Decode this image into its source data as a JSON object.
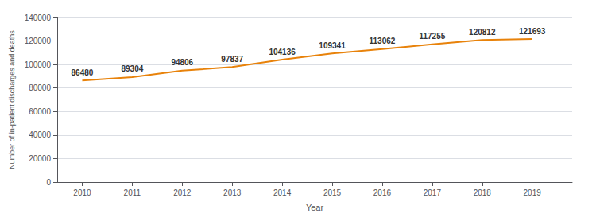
{
  "chart_data": {
    "type": "line",
    "x": [
      2010,
      2011,
      2012,
      2013,
      2014,
      2015,
      2016,
      2017,
      2018,
      2019
    ],
    "values": [
      86480,
      89304,
      94806,
      97837,
      104136,
      109341,
      113062,
      117255,
      120812,
      121693
    ],
    "color": "#E8820A",
    "xlabel": "Year",
    "ylabel": "Number of in-patient discharges and deaths",
    "xlim": [
      2009.5,
      2019.8
    ],
    "xticks": [
      2010,
      2011,
      2012,
      2013,
      2014,
      2015,
      2016,
      2017,
      2018,
      2019
    ],
    "ylim": [
      0,
      140000
    ],
    "yticks": [
      0,
      20000,
      40000,
      60000,
      80000,
      100000,
      120000,
      140000
    ],
    "grid": true,
    "data_labels": true
  }
}
